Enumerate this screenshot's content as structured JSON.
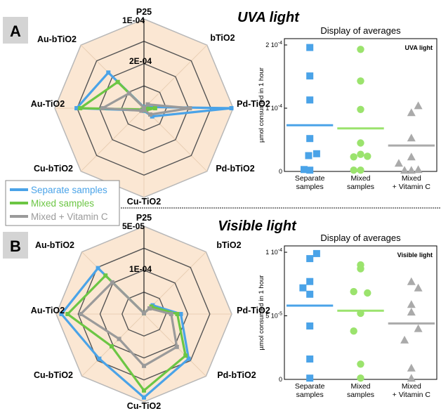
{
  "colors": {
    "separate": "#4aa3e8",
    "mixed": "#6cc644",
    "mixed_light": "#9be36d",
    "vitc": "#9a9a9a",
    "vitc_light": "#aaaaaa",
    "radar_fill": "#fbe7d3",
    "grid": "#333333",
    "outer_grid": "#b8b8b8"
  },
  "legend": [
    {
      "key": "separate",
      "label": "Separate samples"
    },
    {
      "key": "mixed",
      "label": "Mixed samples"
    },
    {
      "key": "vitc",
      "label": "Mixed + Vitamin C"
    }
  ],
  "panels": [
    {
      "letter": "A",
      "title": "UVA light",
      "radar": {
        "axes": [
          "P25",
          "bTiO2",
          "Pd-TiO2",
          "Pd-bTiO2",
          "Cu-TiO2",
          "Cu-bTiO2",
          "Au-TiO2",
          "Au-bTiO2"
        ],
        "max": 0.0002,
        "ring_labels": [
          {
            "value": 0.0001,
            "text": "1E-04"
          },
          {
            "value": 0.0002,
            "text": "2E-04"
          }
        ],
        "series": [
          {
            "key": "separate",
            "values": [
              2e-06,
              4e-06,
              0.000196,
              2.6e-05,
              6e-06,
              7e-06,
              0.000151,
              0.000113
            ]
          },
          {
            "key": "mixed",
            "values": [
              1e-06,
              2e-06,
              2.5e-05,
              7e-06,
              2e-06,
              4e-06,
              0.000143,
              8.3e-05
            ]
          },
          {
            "key": "vitc",
            "values": [
              1e-06,
              1.2e-05,
              0.000103,
              2e-05,
              4e-06,
              8e-06,
              9.3e-05,
              4.7e-05
            ]
          }
        ]
      },
      "averages": {
        "title": "Display of averages",
        "inset_label": "UVA light",
        "ylabel": "µmol consumed in 1 hour",
        "ymax": 0.00021,
        "yticks": [
          {
            "value": 0,
            "base": "0",
            "exp": ""
          },
          {
            "value": 0.0001,
            "base": "1 10",
            "exp": "-4"
          },
          {
            "value": 0.0002,
            "base": "2 10",
            "exp": "-4"
          }
        ],
        "groups": [
          {
            "key": "separate",
            "label_lines": [
              "Separate",
              "samples"
            ],
            "shape": "square",
            "mean": 7.3e-05,
            "points": [
              [
                -0.25,
                3e-06
              ],
              [
                0.0,
                2e-06
              ],
              [
                -0.05,
                2.5e-05
              ],
              [
                0.3,
                2.8e-05
              ],
              [
                0.0,
                5.2e-05
              ],
              [
                0.0,
                0.000113
              ],
              [
                0.0,
                0.000151
              ],
              [
                0.0,
                0.000196
              ]
            ]
          },
          {
            "key": "mixed",
            "label_lines": [
              "Mixed",
              "samples"
            ],
            "shape": "circle",
            "mean": 6.8e-05,
            "points": [
              [
                -0.3,
                2e-06
              ],
              [
                0.0,
                2e-06
              ],
              [
                -0.3,
                2.3e-05
              ],
              [
                0.0,
                2.7e-05
              ],
              [
                0.3,
                2.4e-05
              ],
              [
                0.0,
                4.5e-05
              ],
              [
                0.0,
                9.8e-05
              ],
              [
                0.0,
                0.000143
              ],
              [
                0.0,
                0.000193
              ]
            ]
          },
          {
            "key": "vitc",
            "label_lines": [
              "Mixed",
              "+ Vitamin C"
            ],
            "shape": "triangle",
            "mean": 4.1e-05,
            "points": [
              [
                -0.55,
                1.3e-05
              ],
              [
                -0.3,
                2e-06
              ],
              [
                0.0,
                2e-06
              ],
              [
                0.3,
                3e-06
              ],
              [
                0.0,
                2.3e-05
              ],
              [
                0.0,
                5.3e-05
              ],
              [
                0.0,
                9.3e-05
              ],
              [
                0.3,
                0.000104
              ]
            ]
          }
        ]
      }
    },
    {
      "letter": "B",
      "title": "Visible light",
      "radar": {
        "axes": [
          "P25",
          "bTiO2",
          "Pd-TiO2",
          "Pd-bTiO2",
          "Cu-TiO2",
          "Cu-bTiO2",
          "Au-TiO2",
          "Au-bTiO2"
        ],
        "max": 0.0001,
        "ring_labels": [
          {
            "value": 5e-05,
            "text": "5E-05"
          },
          {
            "value": 0.0001,
            "text": "1E-04"
          }
        ],
        "series": [
          {
            "key": "separate",
            "values": [
              1e-06,
              1.4e-05,
              4.2e-05,
              7.2e-05,
              9.5e-05,
              7.2e-05,
              9.4e-05,
              7.4e-05
            ]
          },
          {
            "key": "mixed",
            "values": [
              1e-06,
              1.2e-05,
              3.8e-05,
              6.7e-05,
              8.7e-05,
              5.2e-05,
              8.7e-05,
              6.2e-05
            ]
          },
          {
            "key": "vitc",
            "values": [
              1e-06,
              9e-06,
              3.1e-05,
              5.3e-05,
              5.9e-05,
              4e-05,
              7.2e-05,
              5.1e-05
            ]
          }
        ]
      },
      "averages": {
        "title": "Display of averages",
        "inset_label": "Visible light",
        "ylabel": "µmol consumed in 1 hour",
        "ymax": 0.000105,
        "yticks": [
          {
            "value": 0,
            "base": "0",
            "exp": ""
          },
          {
            "value": 5e-05,
            "base": "5 10",
            "exp": "-5"
          },
          {
            "value": 0.0001,
            "base": "1 10",
            "exp": "-4"
          }
        ],
        "groups": [
          {
            "key": "separate",
            "label_lines": [
              "Separate",
              "samples"
            ],
            "shape": "square",
            "mean": 5.8e-05,
            "points": [
              [
                0.0,
                1e-06
              ],
              [
                0.0,
                1.6e-05
              ],
              [
                0.0,
                4.2e-05
              ],
              [
                -0.3,
                7.2e-05
              ],
              [
                0.0,
                6.7e-05
              ],
              [
                0.0,
                7.7e-05
              ],
              [
                0.0,
                9.5e-05
              ],
              [
                0.3,
                9.9e-05
              ]
            ]
          },
          {
            "key": "mixed",
            "label_lines": [
              "Mixed",
              "samples"
            ],
            "shape": "circle",
            "mean": 5.4e-05,
            "points": [
              [
                0.0,
                1e-06
              ],
              [
                0.0,
                1.2e-05
              ],
              [
                -0.3,
                3.8e-05
              ],
              [
                0.0,
                5.2e-05
              ],
              [
                0.3,
                6.8e-05
              ],
              [
                -0.3,
                6.9e-05
              ],
              [
                0.0,
                8.7e-05
              ],
              [
                0.0,
                9e-05
              ]
            ]
          },
          {
            "key": "vitc",
            "label_lines": [
              "Mixed",
              "+ Vitamin C"
            ],
            "shape": "triangle",
            "mean": 4.4e-05,
            "points": [
              [
                0.0,
                1e-06
              ],
              [
                0.0,
                9e-06
              ],
              [
                -0.3,
                3.1e-05
              ],
              [
                0.3,
                4e-05
              ],
              [
                0.0,
                5.3e-05
              ],
              [
                0.0,
                5.9e-05
              ],
              [
                0.3,
                7.2e-05
              ],
              [
                0.0,
                7.7e-05
              ]
            ]
          }
        ]
      }
    }
  ]
}
